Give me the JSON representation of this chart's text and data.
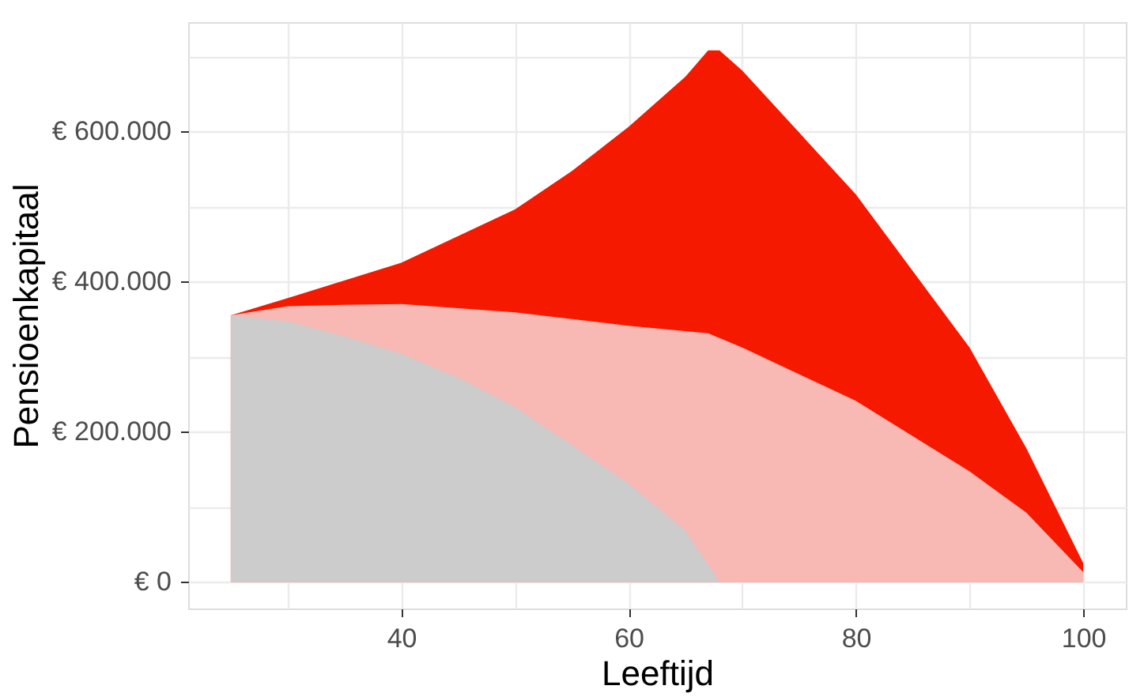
{
  "chart_data": {
    "type": "area",
    "xlabel": "Leeftijd",
    "ylabel": "Pensioenkapitaal",
    "xlim": [
      21.25,
      103.75
    ],
    "xticks": [
      {
        "value": 30,
        "label": null
      },
      40,
      {
        "value": 50,
        "label": null
      },
      60,
      {
        "value": 70,
        "label": null
      },
      80,
      {
        "value": 90,
        "label": null
      },
      100
    ],
    "ylim": [
      -35500,
      745500
    ],
    "yticks": [
      {
        "value": 0,
        "label": "€ 0"
      },
      {
        "value": 100000,
        "label": null
      },
      {
        "value": 200000,
        "label": "€ 200.000"
      },
      {
        "value": 300000,
        "label": null
      },
      {
        "value": 400000,
        "label": "€ 400.000"
      },
      {
        "value": 500000,
        "label": null
      },
      {
        "value": 600000,
        "label": "€ 600.000"
      },
      {
        "value": 700000,
        "label": null
      }
    ],
    "grid": true,
    "series": [
      {
        "color": "#f51900",
        "x": [
          25,
          30,
          40,
          50,
          55,
          60,
          65,
          67,
          68,
          70,
          80,
          90,
          95,
          100
        ],
        "values": [
          355000,
          378000,
          425000,
          496000,
          547000,
          606000,
          673000,
          708000,
          708000,
          681000,
          516000,
          312000,
          178000,
          25000
        ]
      },
      {
        "color": "#f8b8b4",
        "x": [
          25,
          30,
          35,
          40,
          50,
          60,
          67,
          70,
          80,
          90,
          95,
          100
        ],
        "values": [
          355000,
          367000,
          369000,
          370000,
          359000,
          341000,
          331000,
          312000,
          241000,
          147000,
          92000,
          13000
        ]
      },
      {
        "color": "#cccccc",
        "x": [
          25,
          30,
          35,
          40,
          45,
          50,
          55,
          60,
          65,
          68
        ],
        "values": [
          355000,
          347000,
          327000,
          304000,
          272000,
          233000,
          182000,
          131000,
          68000,
          0
        ]
      }
    ]
  }
}
